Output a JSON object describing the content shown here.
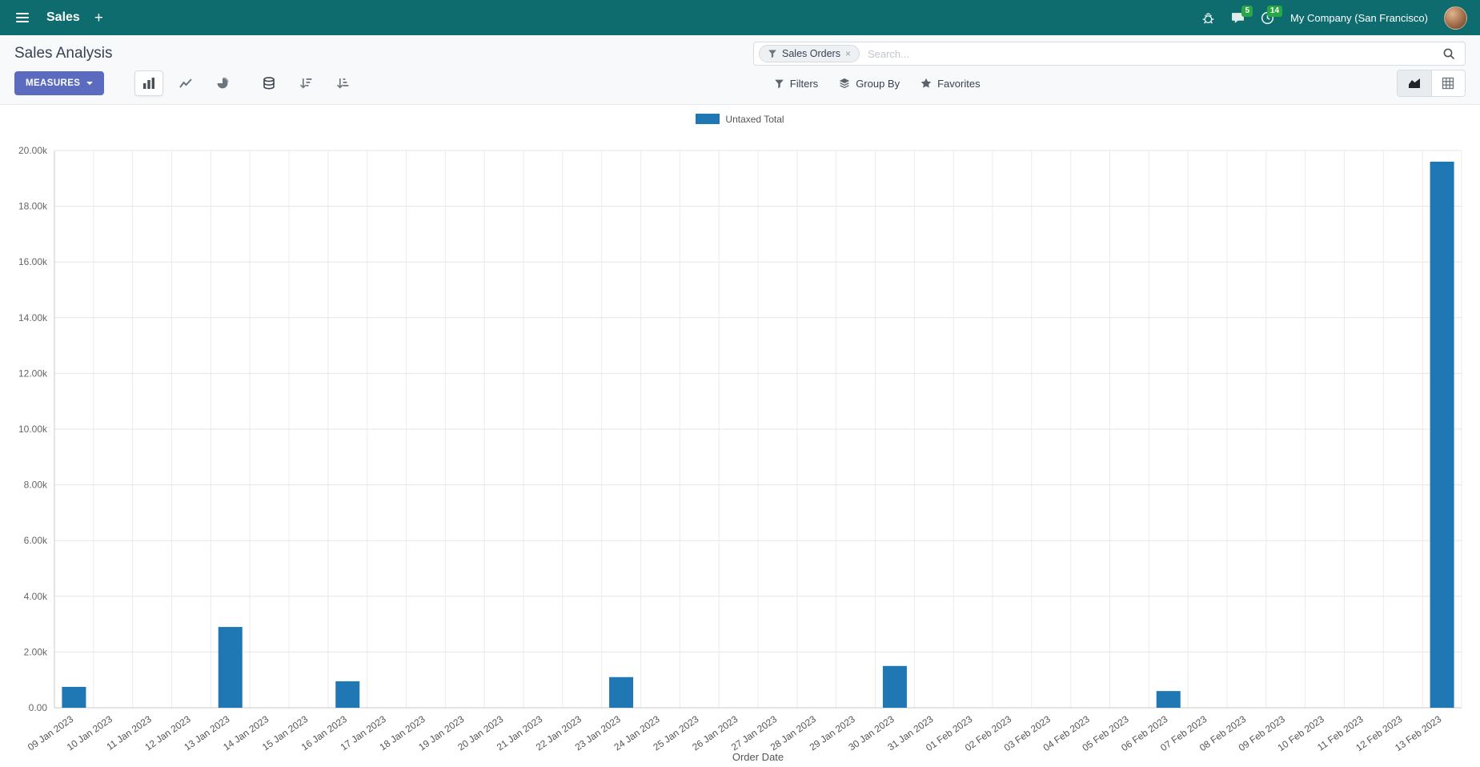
{
  "colors": {
    "navbar": "#0e6c6f",
    "primary": "#5b6cc0",
    "badge_green": "#28a745",
    "bar": "#1f77b4"
  },
  "navbar": {
    "app_name": "Sales",
    "plus_label": "+",
    "messages_badge": "5",
    "activities_badge": "14",
    "company": "My Company (San Francisco)"
  },
  "control_panel": {
    "title": "Sales Analysis",
    "measures_label": "MEASURES",
    "search": {
      "facet": "Sales Orders",
      "facet_remove": "×",
      "placeholder": "Search..."
    },
    "filters_label": "Filters",
    "group_by_label": "Group By",
    "favorites_label": "Favorites"
  },
  "chart_data": {
    "type": "bar",
    "title": "Sales Analysis",
    "xlabel": "Order Date",
    "ylabel": "",
    "ylim": [
      0,
      20000
    ],
    "grid": true,
    "legend_position": "top-center",
    "y_ticks": [
      "0.00",
      "2.00k",
      "4.00k",
      "6.00k",
      "8.00k",
      "10.00k",
      "12.00k",
      "14.00k",
      "16.00k",
      "18.00k",
      "20.00k"
    ],
    "categories": [
      "09 Jan 2023",
      "10 Jan 2023",
      "11 Jan 2023",
      "12 Jan 2023",
      "13 Jan 2023",
      "14 Jan 2023",
      "15 Jan 2023",
      "16 Jan 2023",
      "17 Jan 2023",
      "18 Jan 2023",
      "19 Jan 2023",
      "20 Jan 2023",
      "21 Jan 2023",
      "22 Jan 2023",
      "23 Jan 2023",
      "24 Jan 2023",
      "25 Jan 2023",
      "26 Jan 2023",
      "27 Jan 2023",
      "28 Jan 2023",
      "29 Jan 2023",
      "30 Jan 2023",
      "31 Jan 2023",
      "01 Feb 2023",
      "02 Feb 2023",
      "03 Feb 2023",
      "04 Feb 2023",
      "05 Feb 2023",
      "06 Feb 2023",
      "07 Feb 2023",
      "08 Feb 2023",
      "09 Feb 2023",
      "10 Feb 2023",
      "11 Feb 2023",
      "12 Feb 2023",
      "13 Feb 2023"
    ],
    "series": [
      {
        "name": "Untaxed Total",
        "values": [
          750,
          0,
          0,
          0,
          2900,
          0,
          0,
          950,
          0,
          0,
          0,
          0,
          0,
          0,
          1100,
          0,
          0,
          0,
          0,
          0,
          0,
          1500,
          0,
          0,
          0,
          0,
          0,
          0,
          600,
          0,
          0,
          0,
          0,
          0,
          0,
          19600
        ]
      }
    ]
  }
}
